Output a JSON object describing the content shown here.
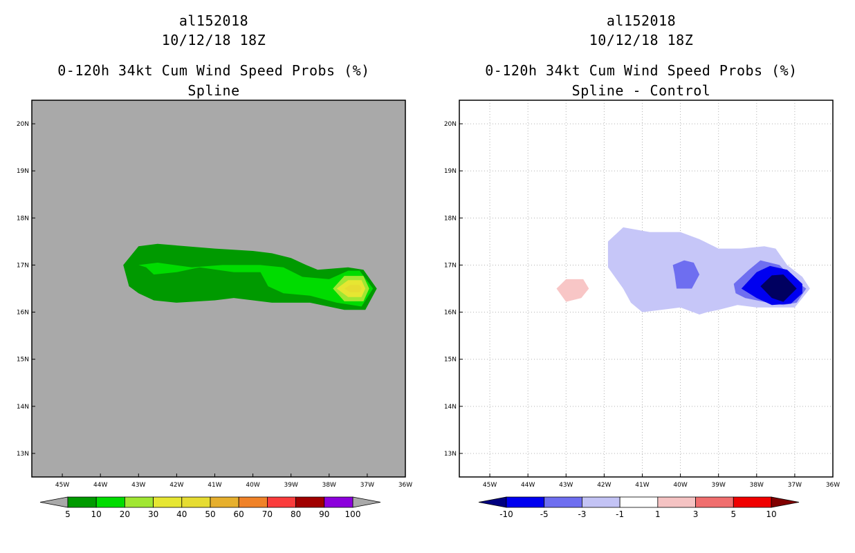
{
  "chart_data": [
    {
      "type": "heatmap",
      "title": [
        "al152018",
        "10/12/18 18Z",
        "0-120h 34kt Cum Wind Speed Probs (%)",
        "Spline"
      ],
      "xlabel": "",
      "ylabel": "",
      "xlim": [
        -45.8,
        -36.0
      ],
      "ylim": [
        12.5,
        20.5
      ],
      "x_ticks": [
        -45,
        -44,
        -43,
        -42,
        -41,
        -40,
        -39,
        -38,
        -37,
        -36
      ],
      "x_tick_labels": [
        "45W",
        "44W",
        "43W",
        "42W",
        "41W",
        "40W",
        "39W",
        "38W",
        "37W",
        "36W"
      ],
      "y_ticks": [
        13,
        14,
        15,
        16,
        17,
        18,
        19,
        20
      ],
      "y_tick_labels": [
        "13N",
        "14N",
        "15N",
        "16N",
        "17N",
        "18N",
        "19N",
        "20N"
      ],
      "grid": false,
      "background": "#a9a9a9",
      "colorbar": {
        "labels": [
          "5",
          "10",
          "20",
          "30",
          "40",
          "50",
          "60",
          "70",
          "80",
          "90",
          "100"
        ],
        "colors": [
          "#009a00",
          "#00dc00",
          "#a0e632",
          "#e6e632",
          "#e6dc32",
          "#e6af2d",
          "#f08228",
          "#fa3c3c",
          "#a00000",
          "#8c00dc"
        ],
        "under_color": "#a9a9a9",
        "over_color": "#a9a9a9"
      },
      "contours": [
        {
          "level": "5-10",
          "color": "#009a00",
          "points": [
            [
              -43.4,
              17.0
            ],
            [
              -43.0,
              17.4
            ],
            [
              -42.5,
              17.45
            ],
            [
              -41.0,
              17.35
            ],
            [
              -40.0,
              17.3
            ],
            [
              -39.5,
              17.25
            ],
            [
              -39.0,
              17.15
            ],
            [
              -38.6,
              17.0
            ],
            [
              -38.3,
              16.9
            ],
            [
              -37.5,
              16.95
            ],
            [
              -37.1,
              16.9
            ],
            [
              -36.75,
              16.5
            ],
            [
              -37.05,
              16.05
            ],
            [
              -37.6,
              16.05
            ],
            [
              -38.5,
              16.2
            ],
            [
              -39.5,
              16.2
            ],
            [
              -40.5,
              16.3
            ],
            [
              -41.0,
              16.25
            ],
            [
              -42.0,
              16.2
            ],
            [
              -42.6,
              16.25
            ],
            [
              -43.0,
              16.4
            ],
            [
              -43.25,
              16.55
            ]
          ]
        },
        {
          "level": "10-20",
          "color": "#00dc00",
          "points": [
            [
              -43.0,
              17.0
            ],
            [
              -42.5,
              17.05
            ],
            [
              -41.6,
              16.95
            ],
            [
              -40.8,
              17.0
            ],
            [
              -39.8,
              17.0
            ],
            [
              -39.2,
              16.95
            ],
            [
              -38.7,
              16.75
            ],
            [
              -38.0,
              16.7
            ],
            [
              -37.5,
              16.88
            ],
            [
              -37.2,
              16.88
            ],
            [
              -36.85,
              16.5
            ],
            [
              -37.15,
              16.12
            ],
            [
              -37.8,
              16.2
            ],
            [
              -38.5,
              16.35
            ],
            [
              -39.2,
              16.4
            ],
            [
              -39.6,
              16.55
            ],
            [
              -39.8,
              16.85
            ],
            [
              -40.5,
              16.85
            ],
            [
              -41.4,
              16.95
            ],
            [
              -42.0,
              16.85
            ],
            [
              -42.6,
              16.8
            ],
            [
              -42.8,
              16.95
            ]
          ]
        },
        {
          "level": "20-30",
          "color": "#a0e632",
          "points": [
            [
              -37.9,
              16.5
            ],
            [
              -37.6,
              16.77
            ],
            [
              -37.1,
              16.77
            ],
            [
              -36.95,
              16.5
            ],
            [
              -37.1,
              16.23
            ],
            [
              -37.6,
              16.23
            ]
          ]
        },
        {
          "level": "30-40",
          "color": "#e6e632",
          "points": [
            [
              -37.8,
              16.5
            ],
            [
              -37.5,
              16.68
            ],
            [
              -37.15,
              16.68
            ],
            [
              -37.05,
              16.5
            ],
            [
              -37.15,
              16.32
            ],
            [
              -37.5,
              16.32
            ]
          ]
        },
        {
          "level": "40-50",
          "color": "#e6dc32",
          "points": [
            [
              -37.6,
              16.5
            ],
            [
              -37.45,
              16.58
            ],
            [
              -37.2,
              16.58
            ],
            [
              -37.15,
              16.5
            ],
            [
              -37.2,
              16.42
            ],
            [
              -37.45,
              16.42
            ]
          ]
        }
      ]
    },
    {
      "type": "heatmap",
      "title": [
        "al152018",
        "10/12/18 18Z",
        "0-120h 34kt Cum Wind Speed Probs (%)",
        "Spline - Control"
      ],
      "xlabel": "",
      "ylabel": "",
      "xlim": [
        -45.8,
        -36.0
      ],
      "ylim": [
        12.5,
        20.5
      ],
      "x_ticks": [
        -45,
        -44,
        -43,
        -42,
        -41,
        -40,
        -39,
        -38,
        -37,
        -36
      ],
      "x_tick_labels": [
        "45W",
        "44W",
        "43W",
        "42W",
        "41W",
        "40W",
        "39W",
        "38W",
        "37W",
        "36W"
      ],
      "y_ticks": [
        13,
        14,
        15,
        16,
        17,
        18,
        19,
        20
      ],
      "y_tick_labels": [
        "13N",
        "14N",
        "15N",
        "16N",
        "17N",
        "18N",
        "19N",
        "20N"
      ],
      "grid": true,
      "background": "#ffffff",
      "colorbar": {
        "labels": [
          "-10",
          "-5",
          "-3",
          "-1",
          "1",
          "3",
          "5",
          "10"
        ],
        "colors": [
          "#0000f0",
          "#6e6ef0",
          "#c3c3f5",
          "#ffffff",
          "#f5c3c3",
          "#f06e6e",
          "#f00000"
        ],
        "under_color": "#000080",
        "over_color": "#800000"
      },
      "contours": [
        {
          "level": "1-3",
          "color": "#f8c6c6",
          "points": [
            [
              -43.25,
              16.5
            ],
            [
              -43.0,
              16.7
            ],
            [
              -42.55,
              16.7
            ],
            [
              -42.4,
              16.5
            ],
            [
              -42.6,
              16.3
            ],
            [
              -43.0,
              16.22
            ]
          ]
        },
        {
          "level": "-3 to -1",
          "color": "#c6c6f8",
          "points": [
            [
              -41.9,
              17.5
            ],
            [
              -41.5,
              17.8
            ],
            [
              -40.8,
              17.7
            ],
            [
              -40.0,
              17.7
            ],
            [
              -39.5,
              17.55
            ],
            [
              -39.0,
              17.35
            ],
            [
              -38.4,
              17.35
            ],
            [
              -37.8,
              17.4
            ],
            [
              -37.5,
              17.35
            ],
            [
              -37.2,
              17.0
            ],
            [
              -36.8,
              16.75
            ],
            [
              -36.6,
              16.5
            ],
            [
              -37.0,
              16.1
            ],
            [
              -37.5,
              16.1
            ],
            [
              -38.0,
              16.1
            ],
            [
              -38.5,
              16.15
            ],
            [
              -39.0,
              16.05
            ],
            [
              -39.3,
              16.0
            ],
            [
              -39.5,
              15.95
            ],
            [
              -40.0,
              16.1
            ],
            [
              -40.5,
              16.05
            ],
            [
              -41.0,
              16.0
            ],
            [
              -41.3,
              16.2
            ],
            [
              -41.5,
              16.5
            ],
            [
              -41.9,
              16.95
            ]
          ]
        },
        {
          "level": "-5 to -3",
          "color": "#6e6ef0",
          "points": [
            [
              -40.2,
              17.0
            ],
            [
              -39.9,
              17.1
            ],
            [
              -39.65,
              17.05
            ],
            [
              -39.5,
              16.8
            ],
            [
              -39.7,
              16.5
            ],
            [
              -40.1,
              16.5
            ],
            [
              -40.15,
              16.8
            ]
          ]
        },
        {
          "level": "-5 to -3 (east)",
          "color": "#6e6ef0",
          "points": [
            [
              -38.6,
              16.6
            ],
            [
              -38.2,
              16.9
            ],
            [
              -37.9,
              17.1
            ],
            [
              -37.4,
              17.0
            ],
            [
              -37.05,
              16.7
            ],
            [
              -36.7,
              16.5
            ],
            [
              -36.95,
              16.2
            ],
            [
              -37.3,
              16.15
            ],
            [
              -37.7,
              16.2
            ],
            [
              -38.3,
              16.3
            ],
            [
              -38.55,
              16.4
            ]
          ]
        },
        {
          "level": "-10 to -5",
          "color": "#0000f0",
          "points": [
            [
              -38.4,
              16.5
            ],
            [
              -38.0,
              16.85
            ],
            [
              -37.65,
              16.98
            ],
            [
              -37.2,
              16.9
            ],
            [
              -36.8,
              16.6
            ],
            [
              -36.8,
              16.4
            ],
            [
              -37.1,
              16.18
            ],
            [
              -37.6,
              16.15
            ],
            [
              -38.0,
              16.3
            ]
          ]
        },
        {
          "level": "< -10",
          "color": "#000060",
          "points": [
            [
              -37.9,
              16.55
            ],
            [
              -37.6,
              16.78
            ],
            [
              -37.3,
              16.8
            ],
            [
              -36.95,
              16.5
            ],
            [
              -37.3,
              16.22
            ],
            [
              -37.6,
              16.3
            ]
          ]
        }
      ]
    }
  ]
}
